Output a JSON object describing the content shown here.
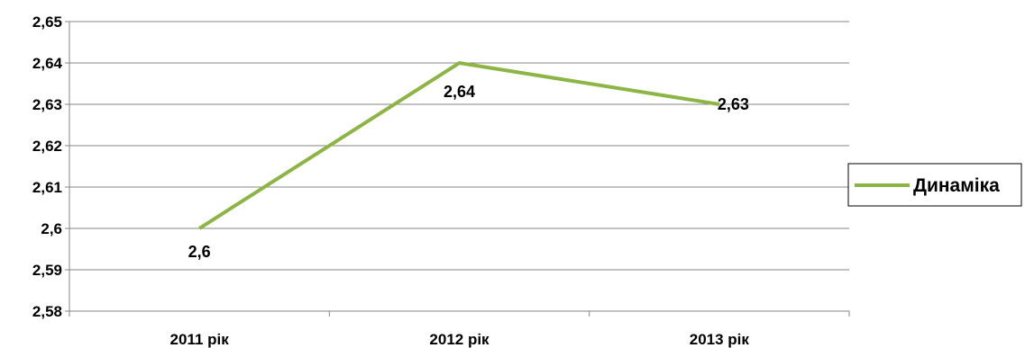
{
  "chart_data": {
    "type": "line",
    "categories": [
      "2011 рік",
      "2012 рік",
      "2013 рік"
    ],
    "series": [
      {
        "name": "Динаміка",
        "values": [
          2.6,
          2.64,
          2.63
        ],
        "color": "#8DB545"
      }
    ],
    "data_labels": [
      "2,6",
      "2,64",
      "2,63"
    ],
    "y_ticks": [
      "2,58",
      "2,59",
      "2,6",
      "2,61",
      "2,62",
      "2,63",
      "2,64",
      "2,65"
    ],
    "ylim": [
      2.58,
      2.65
    ],
    "ystep": 0.01,
    "grid": true,
    "legend_position": "right",
    "title": "",
    "xlabel": "",
    "ylabel": ""
  }
}
